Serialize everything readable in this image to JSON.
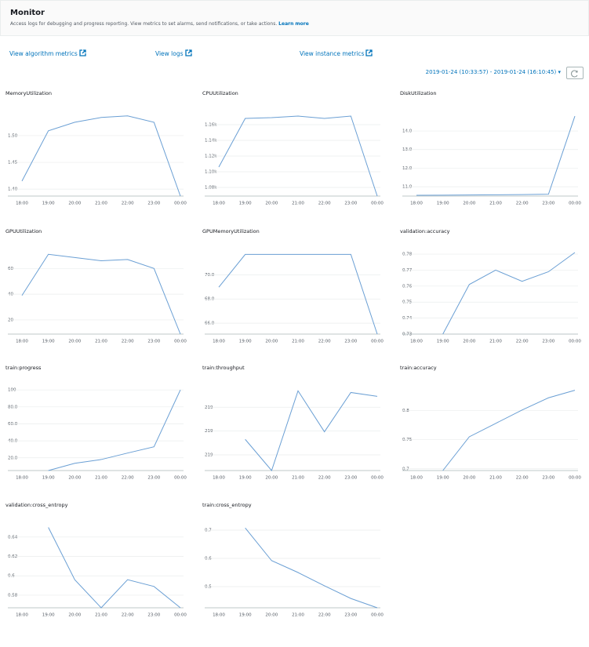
{
  "header": {
    "title": "Monitor",
    "description": "Access logs for debugging and progress reporting. View metrics to set alarms, send notifications, or take actions.",
    "learn_more": "Learn more"
  },
  "links": [
    "View algorithm metrics",
    "View logs",
    "View instance metrics"
  ],
  "date_range": "2019-01-24 (10:33:57) - 2019-01-24 (16:10:45)",
  "chart_data": [
    {
      "type": "line",
      "title": "MemoryUtilization",
      "categories": [
        "18:00",
        "19:00",
        "20:00",
        "21:00",
        "22:00",
        "23:00",
        "00:00"
      ],
      "values": [
        1.415,
        1.509,
        1.525,
        1.534,
        1.537,
        1.525,
        1.387
      ],
      "color": "#6a9fd4",
      "ylim": [
        1.387,
        1.541
      ],
      "yticks": [
        {
          "value": 1.4,
          "label": "1.40"
        },
        1.45,
        {
          "value": 1.5,
          "label": "1.50"
        }
      ],
      "grid": true
    },
    {
      "type": "line",
      "title": "CPUUtilization",
      "categories": [
        "18:00",
        "19:00",
        "20:00",
        "21:00",
        "22:00",
        "23:00",
        "00:00"
      ],
      "values": [
        1106,
        1168,
        1169,
        1171,
        1168,
        1171,
        1069
      ],
      "color": "#6a9fd4",
      "ylim": [
        1069,
        1174
      ],
      "yticks": [
        {
          "value": 1080,
          "label": "1.08k"
        },
        {
          "value": 1100,
          "label": "1.10k"
        },
        {
          "value": 1120,
          "label": "1.12k"
        },
        {
          "value": 1140,
          "label": "1.14k"
        },
        {
          "value": 1160,
          "label": "1.16k"
        }
      ],
      "grid": true
    },
    {
      "type": "line",
      "title": "DiskUtilization",
      "categories": [
        "18:00",
        "19:00",
        "20:00",
        "21:00",
        "22:00",
        "23:00",
        "00:00"
      ],
      "values": [
        10.54,
        10.55,
        10.56,
        10.57,
        10.58,
        10.6,
        14.8
      ],
      "color": "#6a9fd4",
      "ylim": [
        10.5,
        14.93
      ],
      "yticks": [
        {
          "value": 11,
          "label": "11.0"
        },
        {
          "value": 12,
          "label": "12.0"
        },
        {
          "value": 13,
          "label": "13.0"
        },
        {
          "value": 14,
          "label": "14.0"
        }
      ],
      "grid": true
    },
    {
      "type": "line",
      "title": "GPUUtilization",
      "categories": [
        "18:00",
        "19:00",
        "20:00",
        "21:00",
        "22:00",
        "23:00",
        "00:00"
      ],
      "values": [
        39,
        71,
        68.5,
        66,
        67,
        60,
        9
      ],
      "color": "#6a9fd4",
      "ylim": [
        9,
        73
      ],
      "yticks": [
        20,
        40,
        60
      ],
      "grid": true
    },
    {
      "type": "line",
      "title": "GPUMemoryUtilization",
      "categories": [
        "18:00",
        "19:00",
        "20:00",
        "21:00",
        "22:00",
        "23:00",
        "00:00"
      ],
      "values": [
        68.97,
        71.68,
        71.68,
        71.68,
        71.68,
        71.68,
        65.1
      ],
      "color": "#6a9fd4",
      "ylim": [
        65.1,
        71.9
      ],
      "yticks": [
        {
          "value": 66,
          "label": "66.0"
        },
        {
          "value": 68,
          "label": "68.0"
        },
        {
          "value": 70,
          "label": "70.0"
        }
      ],
      "grid": true
    },
    {
      "type": "line",
      "title": "validation:accuracy",
      "categories": [
        "18:00",
        "19:00",
        "20:00",
        "21:00",
        "22:00",
        "23:00",
        "00:00"
      ],
      "values": [
        null,
        0.73,
        0.761,
        0.77,
        0.763,
        0.769,
        0.781
      ],
      "color": "#6a9fd4",
      "ylim": [
        0.73,
        0.7815
      ],
      "yticks": [
        0.73,
        0.74,
        0.75,
        0.76,
        0.77,
        0.78
      ],
      "grid": true
    },
    {
      "type": "line",
      "title": "train:progress",
      "categories": [
        "18:00",
        "19:00",
        "20:00",
        "21:00",
        "22:00",
        "23:00",
        "00:00"
      ],
      "values": [
        null,
        5,
        13.5,
        18,
        25.6,
        33,
        100
      ],
      "color": "#6a9fd4",
      "ylim": [
        5,
        102
      ],
      "yticks": [
        {
          "value": 20,
          "label": "20.0"
        },
        {
          "value": 40,
          "label": "40.0"
        },
        {
          "value": 60,
          "label": "60.0"
        },
        {
          "value": 80,
          "label": "80.0"
        },
        100
      ],
      "grid": true
    },
    {
      "type": "line",
      "title": "train:throughput",
      "categories": [
        "18:00",
        "19:00",
        "20:00",
        "21:00",
        "22:00",
        "23:00",
        "00:00"
      ],
      "values": [
        null,
        219.165,
        219.034,
        219.369,
        219.197,
        219.362,
        219.346
      ],
      "color": "#6a9fd4",
      "ylim": [
        219.034,
        219.38
      ],
      "yticks": [
        {
          "value": 219.1,
          "label": "219"
        },
        {
          "value": 219.2,
          "label": "219"
        },
        {
          "value": 219.3,
          "label": "219"
        }
      ],
      "grid": true
    },
    {
      "type": "line",
      "title": "train:accuracy",
      "categories": [
        "18:00",
        "19:00",
        "20:00",
        "21:00",
        "22:00",
        "23:00",
        "00:00"
      ],
      "values": [
        null,
        0.697,
        0.755,
        0.778,
        0.801,
        0.822,
        0.835
      ],
      "color": "#6a9fd4",
      "ylim": [
        0.697,
        0.8385
      ],
      "yticks": [
        0.7,
        0.75,
        0.8
      ],
      "grid": true
    },
    {
      "type": "line",
      "title": "validation:cross_entropy",
      "categories": [
        "18:00",
        "19:00",
        "20:00",
        "21:00",
        "22:00",
        "23:00",
        "00:00"
      ],
      "values": [
        null,
        0.65,
        0.596,
        0.567,
        0.596,
        0.589,
        0.567
      ],
      "color": "#6a9fd4",
      "ylim": [
        0.567,
        0.652
      ],
      "yticks": [
        0.58,
        0.6,
        0.62,
        0.64
      ],
      "grid": true
    },
    {
      "type": "line",
      "title": "train:cross_entropy",
      "categories": [
        "18:00",
        "19:00",
        "20:00",
        "21:00",
        "22:00",
        "23:00",
        "00:00"
      ],
      "values": [
        null,
        0.708,
        0.592,
        0.55,
        0.503,
        0.458,
        0.425
      ],
      "color": "#6a9fd4",
      "ylim": [
        0.425,
        0.7167
      ],
      "yticks": [
        0.5,
        0.6,
        0.7
      ],
      "grid": true
    }
  ]
}
